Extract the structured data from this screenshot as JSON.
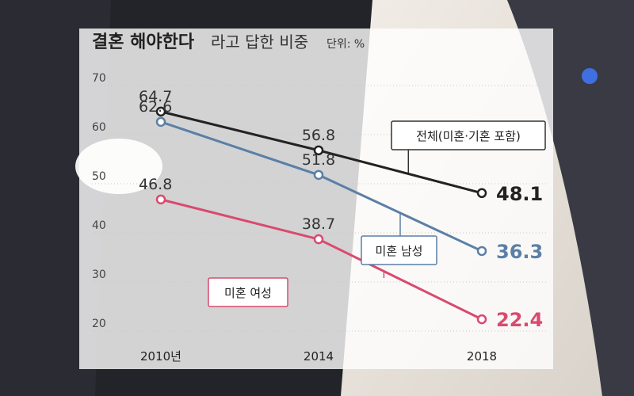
{
  "chart_data": {
    "type": "line",
    "title": "결혼 해야한다",
    "subtitle": "라고 답한 비중",
    "unit_label": "단위: %",
    "x": [
      "2010년",
      "2014",
      "2018"
    ],
    "ylim": [
      20,
      70
    ],
    "yticks": [
      "70",
      "60",
      "50",
      "40",
      "30",
      "20"
    ],
    "grid": true,
    "series": [
      {
        "name": "전체(미혼·기혼 포함)",
        "values": [
          64.7,
          56.8,
          48.1
        ],
        "labels": [
          "64.7",
          "56.8",
          "48.1"
        ],
        "color": "#222222",
        "box_color": "#333333"
      },
      {
        "name": "미혼 남성",
        "values": [
          62.6,
          51.8,
          36.3
        ],
        "labels": [
          "62.6",
          "51.8",
          "36.3"
        ],
        "color": "#5b7fa6",
        "box_color": "#5b7fa6"
      },
      {
        "name": "미혼 여성",
        "values": [
          46.8,
          38.7,
          22.4
        ],
        "labels": [
          "46.8",
          "38.7",
          "22.4"
        ],
        "color": "#d94a6e",
        "box_color": "#d94a6e"
      }
    ]
  }
}
